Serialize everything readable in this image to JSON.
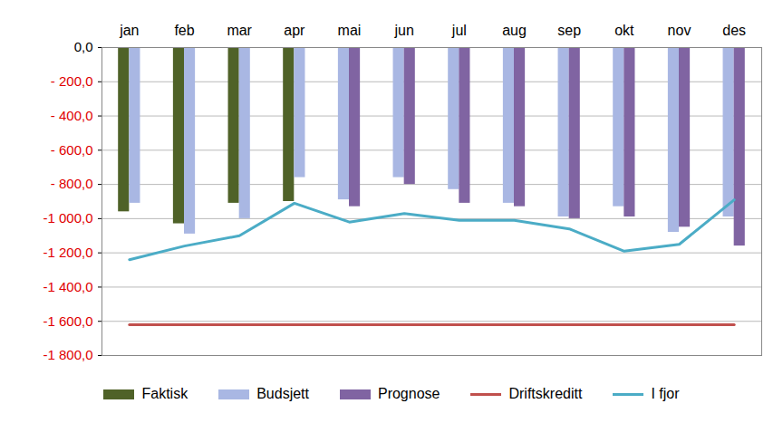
{
  "chart_data": {
    "type": "bar",
    "categories": [
      "jan",
      "feb",
      "mar",
      "apr",
      "mai",
      "jun",
      "jul",
      "aug",
      "sep",
      "okt",
      "nov",
      "des"
    ],
    "series": [
      {
        "name": "Faktisk",
        "type": "bar",
        "color": "#4f6228",
        "values": [
          -960,
          -1030,
          -910,
          -900,
          null,
          null,
          null,
          null,
          null,
          null,
          null,
          null
        ]
      },
      {
        "name": "Budsjett",
        "type": "bar",
        "color": "#a9b7e3",
        "values": [
          -910,
          -1090,
          -1000,
          -760,
          -890,
          -760,
          -830,
          -910,
          -990,
          -930,
          -1080,
          -990
        ]
      },
      {
        "name": "Prognose",
        "type": "bar",
        "color": "#8064a2",
        "values": [
          null,
          null,
          null,
          null,
          -930,
          -800,
          -910,
          -930,
          -1000,
          -990,
          -1050,
          -1160
        ]
      },
      {
        "name": "Driftskreditt",
        "type": "line",
        "color": "#c0504d",
        "values": [
          -1620,
          -1620,
          -1620,
          -1620,
          -1620,
          -1620,
          -1620,
          -1620,
          -1620,
          -1620,
          -1620,
          -1620
        ]
      },
      {
        "name": "I fjor",
        "type": "line",
        "color": "#4bacc6",
        "values": [
          -1240,
          -1160,
          -1100,
          -910,
          -1020,
          -970,
          -1010,
          -1010,
          -1060,
          -1190,
          -1150,
          -890
        ]
      }
    ],
    "ylim": [
      -1800,
      0
    ],
    "yticks": [
      {
        "value": 0,
        "label": "0,0"
      },
      {
        "value": -200,
        "label": "- 200,0"
      },
      {
        "value": -400,
        "label": "- 400,0"
      },
      {
        "value": -600,
        "label": "- 600,0"
      },
      {
        "value": -800,
        "label": "- 800,0"
      },
      {
        "value": -1000,
        "label": "-1 000,0"
      },
      {
        "value": -1200,
        "label": "-1 200,0"
      },
      {
        "value": -1400,
        "label": "-1 400,0"
      },
      {
        "value": -1600,
        "label": "-1 600,0"
      },
      {
        "value": -1800,
        "label": "-1 800,0"
      }
    ],
    "grid": true,
    "legend": "bottom"
  }
}
